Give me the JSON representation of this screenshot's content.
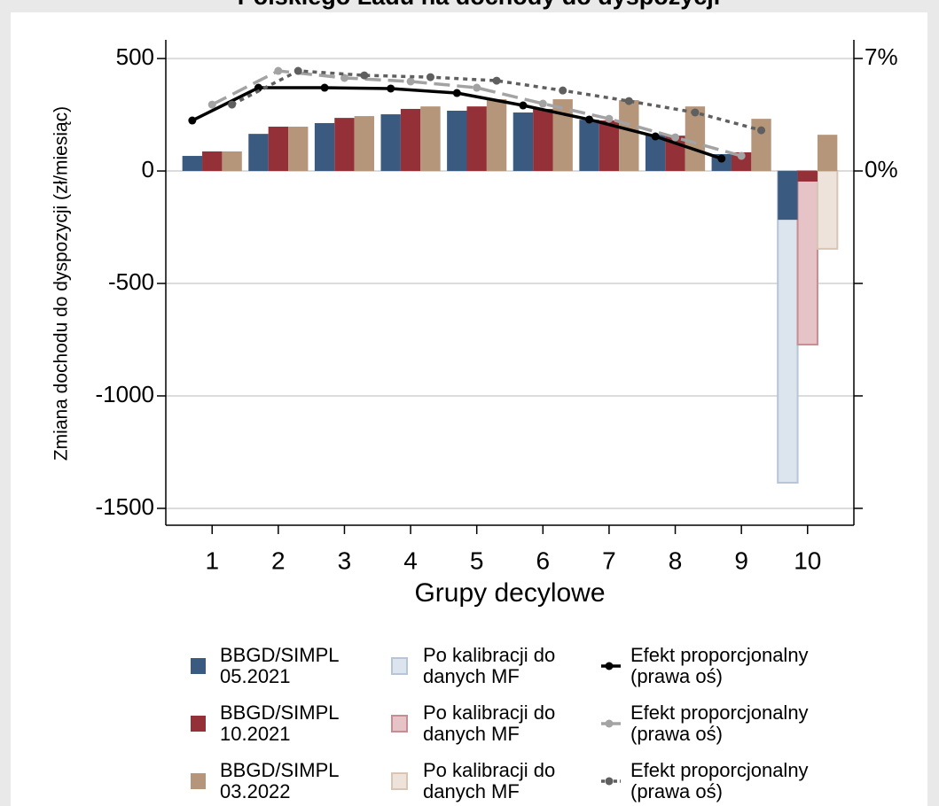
{
  "chart_data": {
    "type": "bar",
    "title": "Polskiego Ładu na dochody do dyspozycji",
    "xlabel": "Grupy decylowe",
    "ylabel": "Zmiana dochodu do dyspozycji (zł/miesiąc)",
    "x": [
      1,
      2,
      3,
      4,
      5,
      6,
      7,
      8,
      9,
      10
    ],
    "xlim": [
      0.3,
      10.7
    ],
    "xticks": [
      1,
      2,
      3,
      4,
      5,
      6,
      7,
      8,
      9,
      10
    ],
    "ylim": [
      -1575,
      583
    ],
    "yticks": [
      500,
      0,
      -500,
      -1000,
      -1500
    ],
    "y2lim": [
      -22.05,
      8.16
    ],
    "y2ticks": [
      {
        "value": 7,
        "label": "7%"
      },
      {
        "value": 0,
        "label": "0%"
      }
    ],
    "y2_minor_ticks": [
      -7,
      -14,
      -21
    ],
    "grid": true,
    "series": [
      {
        "name": "BBGD/SIMPL 05.2021",
        "type": "bar",
        "color": "#3b5a7f",
        "values": [
          67,
          165,
          213,
          252,
          268,
          260,
          228,
          161,
          75,
          -217
        ]
      },
      {
        "name": "BBGD/SIMPL 10.2021",
        "type": "bar",
        "color": "#943038",
        "values": [
          87,
          197,
          236,
          276,
          287,
          276,
          225,
          157,
          83,
          -47
        ]
      },
      {
        "name": "BBGD/SIMPL 03.2022",
        "type": "bar",
        "color": "#b5967a",
        "values": [
          87,
          197,
          244,
          287,
          319,
          319,
          315,
          287,
          232,
          161
        ]
      },
      {
        "name": "Po kalibracji do danych MF",
        "type": "bar",
        "color": "#dce4ed",
        "edgecolor": "#b6c6d8",
        "values": [
          null,
          null,
          null,
          null,
          null,
          null,
          null,
          null,
          null,
          -1386
        ]
      },
      {
        "name": "Po kalibracji do danych MF",
        "type": "bar",
        "color": "#e6c3c6",
        "edgecolor": "#c88c93",
        "values": [
          null,
          null,
          null,
          null,
          null,
          null,
          null,
          null,
          null,
          -772
        ]
      },
      {
        "name": "Po kalibracji do danych MF",
        "type": "bar",
        "color": "#eee3da",
        "edgecolor": "#d8c5b6",
        "values": [
          null,
          null,
          null,
          null,
          null,
          null,
          null,
          null,
          null,
          -346
        ]
      },
      {
        "name": "Efekt proporcjonalny (prawa oś)",
        "type": "line",
        "axis": "y2",
        "color": "#000000",
        "linestyle": "solid",
        "values": [
          3.14,
          5.18,
          5.18,
          5.13,
          4.85,
          4.08,
          3.2,
          2.15,
          0.77,
          null
        ]
      },
      {
        "name": "Efekt proporcjonalny (prawa oś)",
        "type": "line",
        "axis": "y2",
        "color": "#a3a3a3",
        "linestyle": "dashed",
        "values": [
          4.13,
          6.23,
          5.79,
          5.57,
          5.18,
          4.19,
          3.25,
          2.09,
          0.94,
          null
        ]
      },
      {
        "name": "Efekt proporcjonalny (prawa oś)",
        "type": "line",
        "axis": "y2",
        "color": "#5f5f5f",
        "linestyle": "dotted",
        "values": [
          4.13,
          6.23,
          5.95,
          5.84,
          5.62,
          5.01,
          4.35,
          3.64,
          2.53,
          null
        ]
      }
    ]
  }
}
